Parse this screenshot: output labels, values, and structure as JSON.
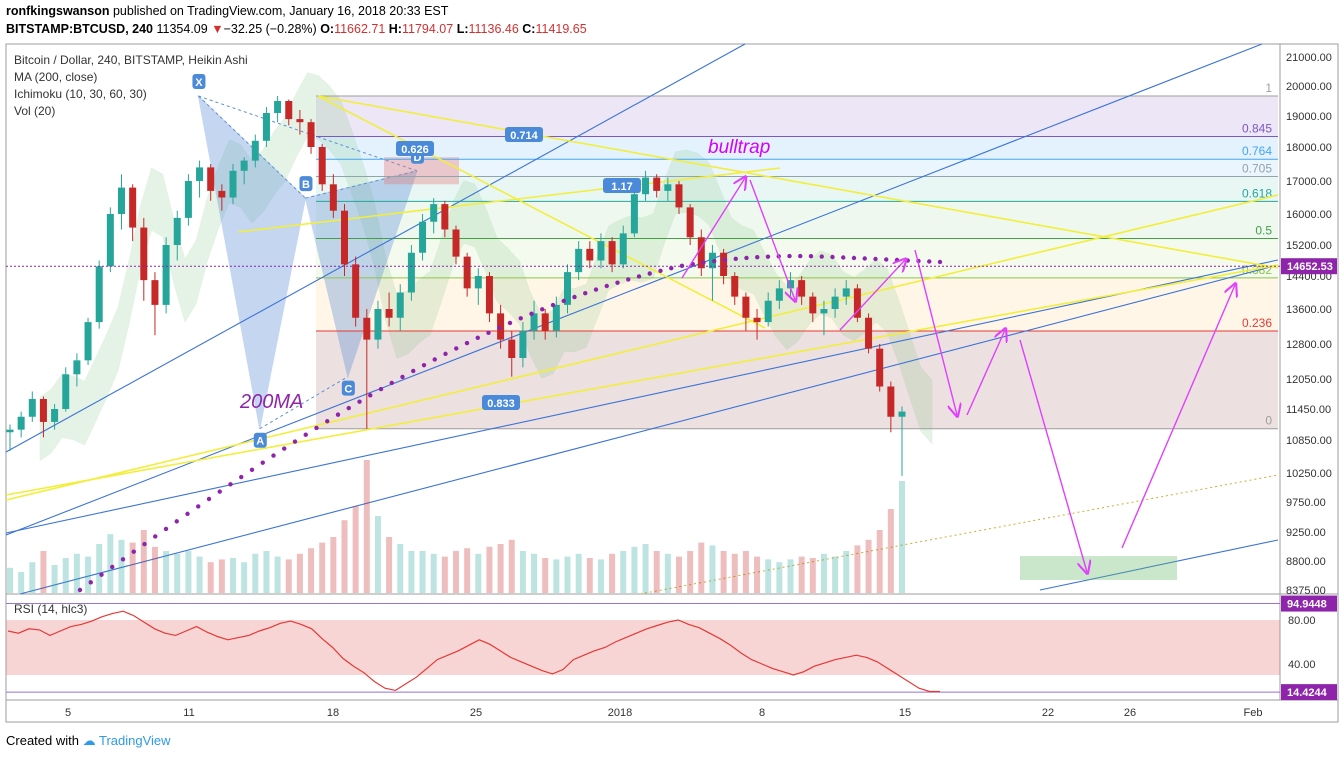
{
  "header": {
    "author": "ronfkingswanson",
    "published_text": "published on TradingView.com, January 16, 2018 20:33 EST",
    "symbol": "BITSTAMP:BTCUSD, 240",
    "last": "11354.09",
    "change": "−32.25 (−0.28%)",
    "o_label": "O:",
    "o": "11662.71",
    "h_label": "H:",
    "h": "11794.07",
    "l_label": "L:",
    "l": "11136.46",
    "c_label": "C:",
    "c": "11419.65"
  },
  "legend": {
    "title": "Bitcoin / Dollar, 240, BITSTAMP, Heikin Ashi",
    "ma": "MA (200, close)",
    "ichimoku": "Ichimoku (10, 30, 60, 30)",
    "vol": "Vol (20)",
    "rsi": "RSI (14, hlc3)"
  },
  "footer": {
    "created_with": "Created with",
    "brand": "TradingView"
  },
  "colors": {
    "up": "#26a69a",
    "down": "#c62828",
    "ma": "#8e24aa",
    "trend": "#3b73d6",
    "yellow": "#f2ee3a",
    "arrow": "#e040fb",
    "rsi": "#e53935",
    "price_tag": "#8e24aa"
  },
  "chart_data": {
    "type": "candlestick",
    "x_ticks": [
      "5",
      "11",
      "18",
      "25",
      "2018",
      "8",
      "15",
      "22",
      "26",
      "Feb"
    ],
    "y_ticks": [
      8375,
      8800,
      9250,
      9750,
      10250,
      10850,
      11450,
      12050,
      12800,
      13600,
      14400,
      15200,
      16000,
      17000,
      18000,
      19000,
      20000,
      21000
    ],
    "y_range": [
      8375,
      21000
    ],
    "current_price_label": "14652.53",
    "fib_levels": [
      {
        "label": "1",
        "price": 19666
      },
      {
        "label": "0.845",
        "price": 18337
      },
      {
        "label": "0.764",
        "price": 17640
      },
      {
        "label": "0.705",
        "price": 17133
      },
      {
        "label": "0.618",
        "price": 16384
      },
      {
        "label": "0.5",
        "price": 15369
      },
      {
        "label": "0.382",
        "price": 14354
      },
      {
        "label": "0.236",
        "price": 13098
      },
      {
        "label": "0",
        "price": 11068
      }
    ],
    "pattern_points": [
      {
        "label": "X",
        "date_index": 16.9,
        "price": 19666
      },
      {
        "label": "A",
        "date_index": 22.4,
        "price": 11068
      },
      {
        "label": "B",
        "date_index": 26.5,
        "price": 16480
      },
      {
        "label": "C",
        "date_index": 30.3,
        "price": 12100
      },
      {
        "label": "D",
        "date_index": 36.5,
        "price": 17300
      }
    ],
    "ratio_labels": [
      "0.626",
      "0.714",
      "1.17",
      "0.833"
    ],
    "annotations": [
      "bulltrap",
      "200MA"
    ],
    "rsi": {
      "name": "RSI (14, hlc3)",
      "upper_label": "94.9448",
      "lower_label": "14.4244",
      "ticks": [
        80,
        40
      ],
      "y_range": [
        10,
        100
      ],
      "values": [
        70,
        68,
        72,
        71,
        66,
        70,
        74,
        76,
        79,
        83,
        86,
        88,
        84,
        78,
        72,
        68,
        66,
        70,
        74,
        69,
        65,
        62,
        64,
        66,
        70,
        73,
        77,
        79,
        76,
        72,
        63,
        55,
        45,
        38,
        32,
        24,
        18,
        16,
        22,
        28,
        36,
        44,
        48,
        52,
        57,
        62,
        58,
        52,
        46,
        42,
        38,
        34,
        31,
        35,
        44,
        48,
        52,
        55,
        60,
        64,
        68,
        72,
        75,
        78,
        80,
        76,
        73,
        68,
        63,
        57,
        50,
        44,
        40,
        36,
        33,
        30,
        33,
        38,
        41,
        44,
        46,
        48,
        46,
        42,
        36,
        30,
        24,
        18,
        15,
        15
      ]
    },
    "candles": [
      {
        "o": 11000,
        "h": 11150,
        "l": 10650,
        "c": 11050
      },
      {
        "o": 11050,
        "h": 11400,
        "l": 10900,
        "c": 11300
      },
      {
        "o": 11300,
        "h": 11800,
        "l": 11200,
        "c": 11650
      },
      {
        "o": 11650,
        "h": 11700,
        "l": 10900,
        "c": 11200
      },
      {
        "o": 11200,
        "h": 11550,
        "l": 11050,
        "c": 11450
      },
      {
        "o": 11450,
        "h": 12300,
        "l": 11400,
        "c": 12150
      },
      {
        "o": 12150,
        "h": 12600,
        "l": 11900,
        "c": 12450
      },
      {
        "o": 12450,
        "h": 13400,
        "l": 12350,
        "c": 13300
      },
      {
        "o": 13300,
        "h": 14800,
        "l": 13150,
        "c": 14650
      },
      {
        "o": 14650,
        "h": 16200,
        "l": 14500,
        "c": 16000
      },
      {
        "o": 16000,
        "h": 17200,
        "l": 15600,
        "c": 16800
      },
      {
        "o": 16800,
        "h": 16900,
        "l": 15300,
        "c": 15650
      },
      {
        "o": 15650,
        "h": 15900,
        "l": 13800,
        "c": 14300
      },
      {
        "o": 14300,
        "h": 14500,
        "l": 13000,
        "c": 13700
      },
      {
        "o": 13700,
        "h": 15400,
        "l": 13500,
        "c": 15200
      },
      {
        "o": 15200,
        "h": 16100,
        "l": 14800,
        "c": 15900
      },
      {
        "o": 15900,
        "h": 17200,
        "l": 15700,
        "c": 17000
      },
      {
        "o": 17000,
        "h": 17600,
        "l": 16500,
        "c": 17400
      },
      {
        "o": 17400,
        "h": 17500,
        "l": 16400,
        "c": 16700
      },
      {
        "o": 16700,
        "h": 16900,
        "l": 16100,
        "c": 16500
      },
      {
        "o": 16500,
        "h": 17500,
        "l": 16300,
        "c": 17300
      },
      {
        "o": 17300,
        "h": 17700,
        "l": 16900,
        "c": 17600
      },
      {
        "o": 17600,
        "h": 18400,
        "l": 17400,
        "c": 18200
      },
      {
        "o": 18200,
        "h": 19300,
        "l": 18000,
        "c": 19100
      },
      {
        "o": 19100,
        "h": 19666,
        "l": 18800,
        "c": 19500
      },
      {
        "o": 19500,
        "h": 19550,
        "l": 18700,
        "c": 18900
      },
      {
        "o": 18900,
        "h": 19200,
        "l": 18400,
        "c": 18800
      },
      {
        "o": 18800,
        "h": 18900,
        "l": 17800,
        "c": 18000
      },
      {
        "o": 18000,
        "h": 18100,
        "l": 16700,
        "c": 16900
      },
      {
        "o": 16900,
        "h": 17200,
        "l": 15900,
        "c": 16100
      },
      {
        "o": 16100,
        "h": 16300,
        "l": 14400,
        "c": 14700
      },
      {
        "o": 14700,
        "h": 14900,
        "l": 13200,
        "c": 13400
      },
      {
        "o": 13400,
        "h": 13600,
        "l": 11068,
        "c": 12900
      },
      {
        "o": 12900,
        "h": 13800,
        "l": 12700,
        "c": 13600
      },
      {
        "o": 13600,
        "h": 14000,
        "l": 13200,
        "c": 13400
      },
      {
        "o": 13400,
        "h": 14200,
        "l": 13100,
        "c": 14000
      },
      {
        "o": 14000,
        "h": 15200,
        "l": 13800,
        "c": 15000
      },
      {
        "o": 15000,
        "h": 16000,
        "l": 14800,
        "c": 15800
      },
      {
        "o": 15800,
        "h": 16480,
        "l": 15500,
        "c": 16300
      },
      {
        "o": 16300,
        "h": 16400,
        "l": 15400,
        "c": 15600
      },
      {
        "o": 15600,
        "h": 15700,
        "l": 14700,
        "c": 14900
      },
      {
        "o": 14900,
        "h": 15000,
        "l": 13900,
        "c": 14100
      },
      {
        "o": 14100,
        "h": 14600,
        "l": 13700,
        "c": 14400
      },
      {
        "o": 14400,
        "h": 14500,
        "l": 13300,
        "c": 13500
      },
      {
        "o": 13500,
        "h": 13700,
        "l": 12700,
        "c": 12900
      },
      {
        "o": 12900,
        "h": 13100,
        "l": 12100,
        "c": 12500
      },
      {
        "o": 12500,
        "h": 13300,
        "l": 12300,
        "c": 13100
      },
      {
        "o": 13100,
        "h": 13800,
        "l": 12900,
        "c": 13500
      },
      {
        "o": 13500,
        "h": 13600,
        "l": 12900,
        "c": 13100
      },
      {
        "o": 13100,
        "h": 13900,
        "l": 12950,
        "c": 13700
      },
      {
        "o": 13700,
        "h": 14700,
        "l": 13500,
        "c": 14500
      },
      {
        "o": 14500,
        "h": 15300,
        "l": 14300,
        "c": 15100
      },
      {
        "o": 15100,
        "h": 15300,
        "l": 14600,
        "c": 14800
      },
      {
        "o": 14800,
        "h": 15500,
        "l": 14600,
        "c": 15300
      },
      {
        "o": 15300,
        "h": 15400,
        "l": 14500,
        "c": 14700
      },
      {
        "o": 14700,
        "h": 15700,
        "l": 14600,
        "c": 15500
      },
      {
        "o": 15500,
        "h": 16800,
        "l": 15400,
        "c": 16600
      },
      {
        "o": 16600,
        "h": 17300,
        "l": 16400,
        "c": 17100
      },
      {
        "o": 17100,
        "h": 17200,
        "l": 16500,
        "c": 16700
      },
      {
        "o": 16700,
        "h": 17100,
        "l": 16400,
        "c": 16900
      },
      {
        "o": 16900,
        "h": 17000,
        "l": 16000,
        "c": 16200
      },
      {
        "o": 16200,
        "h": 16300,
        "l": 15200,
        "c": 15400
      },
      {
        "o": 15400,
        "h": 15600,
        "l": 14400,
        "c": 14600
      },
      {
        "o": 14600,
        "h": 15200,
        "l": 13800,
        "c": 15000
      },
      {
        "o": 15000,
        "h": 15100,
        "l": 14200,
        "c": 14400
      },
      {
        "o": 14400,
        "h": 14500,
        "l": 13700,
        "c": 13900
      },
      {
        "o": 13900,
        "h": 14000,
        "l": 13100,
        "c": 13400
      },
      {
        "o": 13400,
        "h": 13600,
        "l": 12900,
        "c": 13300
      },
      {
        "o": 13300,
        "h": 14000,
        "l": 13200,
        "c": 13800
      },
      {
        "o": 13800,
        "h": 14300,
        "l": 13600,
        "c": 14100
      },
      {
        "o": 14100,
        "h": 14500,
        "l": 13900,
        "c": 14300
      },
      {
        "o": 14300,
        "h": 14400,
        "l": 13700,
        "c": 13900
      },
      {
        "o": 13900,
        "h": 14000,
        "l": 13300,
        "c": 13500
      },
      {
        "o": 13500,
        "h": 13800,
        "l": 13000,
        "c": 13600
      },
      {
        "o": 13600,
        "h": 14100,
        "l": 13400,
        "c": 13900
      },
      {
        "o": 13900,
        "h": 14300,
        "l": 13700,
        "c": 14100
      },
      {
        "o": 14100,
        "h": 14200,
        "l": 13300,
        "c": 13400
      },
      {
        "o": 13400,
        "h": 13500,
        "l": 12600,
        "c": 12700
      },
      {
        "o": 12700,
        "h": 12800,
        "l": 11800,
        "c": 11900
      },
      {
        "o": 11900,
        "h": 12000,
        "l": 11000,
        "c": 11300
      },
      {
        "o": 11300,
        "h": 11500,
        "l": 10200,
        "c": 11400
      }
    ],
    "volume": [
      0.18,
      0.15,
      0.22,
      0.3,
      0.2,
      0.25,
      0.28,
      0.26,
      0.35,
      0.42,
      0.38,
      0.36,
      0.45,
      0.33,
      0.3,
      0.28,
      0.3,
      0.26,
      0.22,
      0.24,
      0.25,
      0.22,
      0.28,
      0.3,
      0.26,
      0.24,
      0.28,
      0.32,
      0.36,
      0.4,
      0.52,
      0.62,
      0.95,
      0.55,
      0.4,
      0.35,
      0.3,
      0.3,
      0.28,
      0.26,
      0.3,
      0.32,
      0.28,
      0.33,
      0.35,
      0.38,
      0.3,
      0.28,
      0.25,
      0.24,
      0.26,
      0.28,
      0.25,
      0.24,
      0.28,
      0.3,
      0.33,
      0.35,
      0.3,
      0.28,
      0.26,
      0.3,
      0.36,
      0.34,
      0.3,
      0.28,
      0.3,
      0.26,
      0.24,
      0.22,
      0.24,
      0.26,
      0.25,
      0.28,
      0.26,
      0.3,
      0.34,
      0.38,
      0.45,
      0.6,
      0.8
    ]
  }
}
